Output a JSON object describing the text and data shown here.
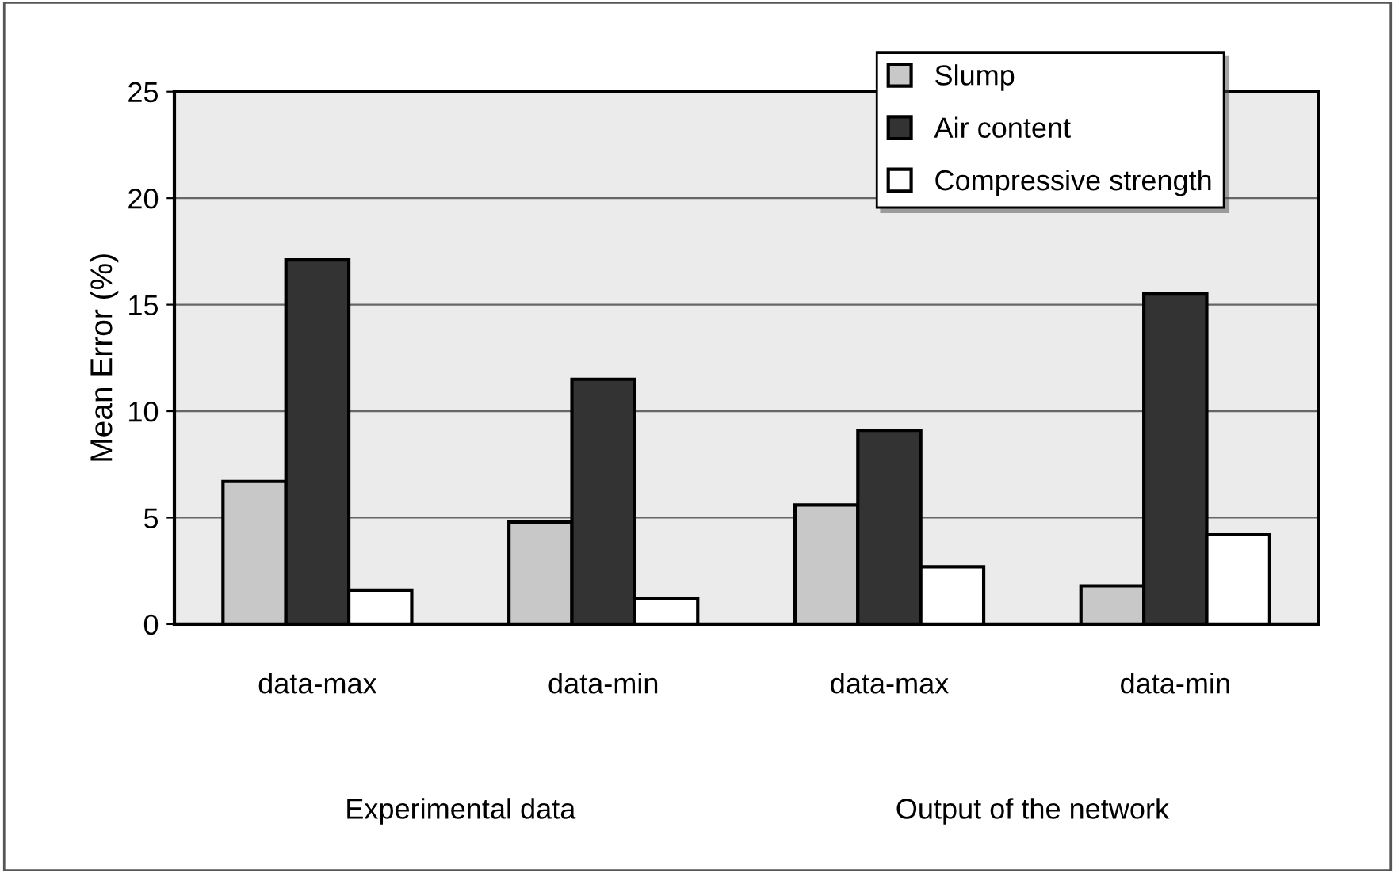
{
  "chart_data": {
    "type": "bar",
    "ylabel": "Mean Error (%)",
    "categories": [
      "data-max",
      "data-min",
      "data-max",
      "data-min"
    ],
    "series": [
      {
        "name": "Slump",
        "color": "#c8c8c8",
        "values": [
          6.7,
          4.8,
          5.6,
          1.8
        ]
      },
      {
        "name": "Air content",
        "color": "#333333",
        "values": [
          17.1,
          11.5,
          9.1,
          15.5
        ]
      },
      {
        "name": "Compressive strength",
        "color": "#ffffff",
        "values": [
          1.6,
          1.2,
          2.7,
          4.2
        ]
      }
    ],
    "annotations": [
      "Experimental data",
      "Output of the network"
    ],
    "ylim": [
      0,
      25
    ],
    "yticks": [
      0,
      5,
      10,
      15,
      20,
      25
    ],
    "grid": "y",
    "legend": "top right"
  }
}
